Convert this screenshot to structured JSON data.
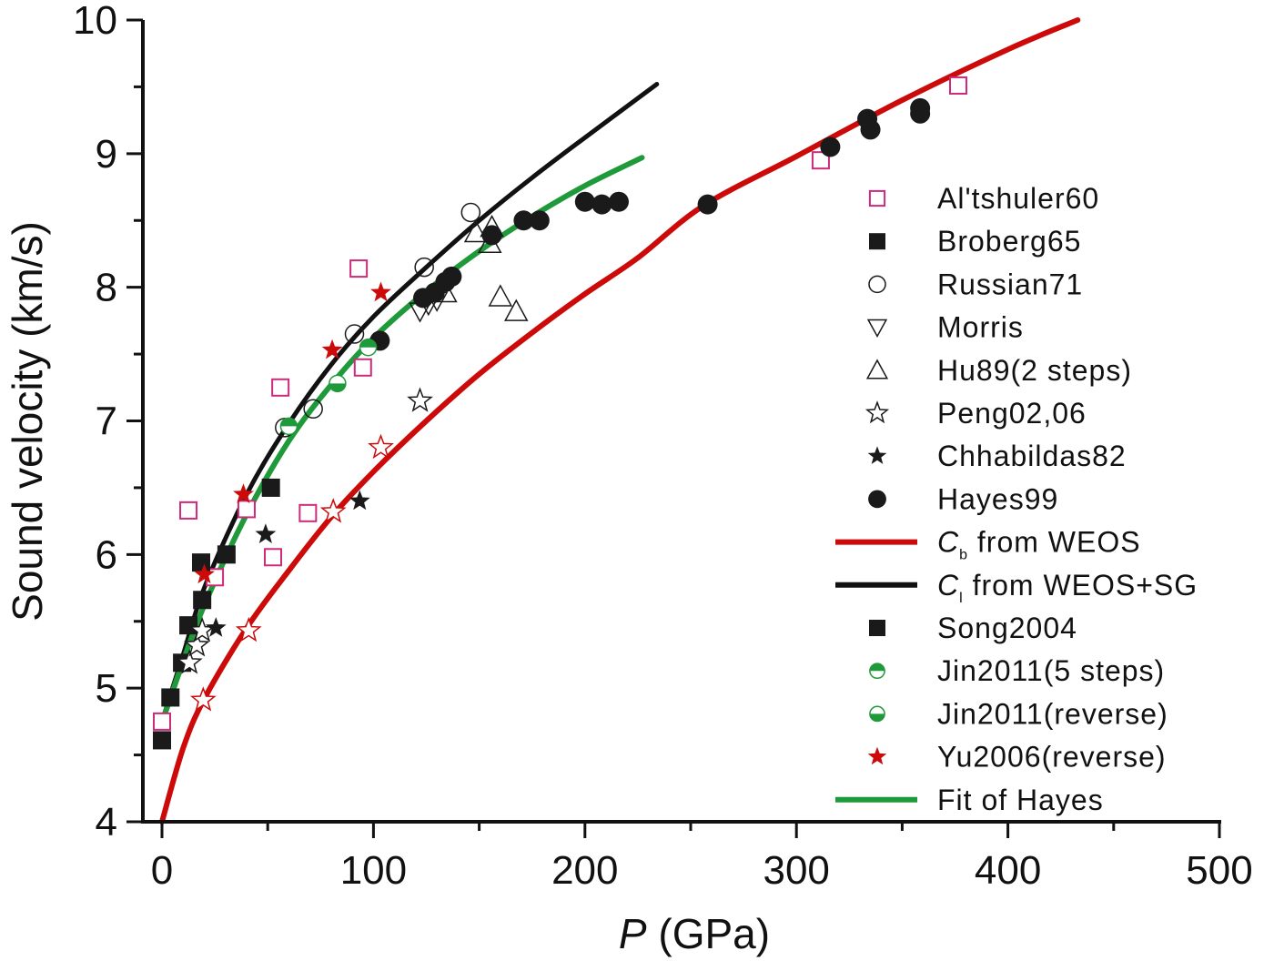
{
  "chart_data": {
    "type": "scatter",
    "title": "",
    "xlabel": "P (GPa)",
    "xlabel_italic": "P",
    "xlabel_rest": " (GPa)",
    "ylabel": "Sound velocity (km/s)",
    "xlim": [
      0,
      500
    ],
    "ylim": [
      4,
      10
    ],
    "x_ticks": [
      0,
      100,
      200,
      300,
      400,
      500
    ],
    "x_minor_ticks": [
      50,
      150,
      250,
      350,
      450
    ],
    "y_ticks": [
      4,
      5,
      6,
      7,
      8,
      9,
      10
    ],
    "y_minor_ticks": [
      4.5,
      5.5,
      6.5,
      7.5,
      8.5,
      9.5
    ],
    "grid": false,
    "legend_position": "right",
    "series": [
      {
        "name": "Al'tshuler60",
        "kind": "marker",
        "marker": "square-open",
        "color": "#cc2a7a",
        "points": [
          [
            0,
            4.75
          ],
          [
            12.5,
            6.33
          ],
          [
            25,
            5.83
          ],
          [
            40,
            6.34
          ],
          [
            52.5,
            5.98
          ],
          [
            56,
            7.25
          ],
          [
            69,
            6.31
          ],
          [
            93,
            8.14
          ],
          [
            95,
            7.4
          ],
          [
            311.5,
            8.95
          ],
          [
            376.5,
            9.51
          ]
        ]
      },
      {
        "name": "Broberg65",
        "kind": "marker",
        "marker": "square-filled",
        "color": "#1a1a1a",
        "points": [
          [
            0,
            4.61
          ],
          [
            4,
            4.93
          ],
          [
            9.5,
            5.19
          ],
          [
            12.5,
            5.47
          ],
          [
            19,
            5.66
          ],
          [
            18.5,
            5.94
          ],
          [
            30.5,
            6.0
          ],
          [
            51.5,
            6.5
          ]
        ]
      },
      {
        "name": "Russian71",
        "kind": "marker",
        "marker": "circle-open",
        "color": "#1a1a1a",
        "points": [
          [
            58,
            6.95
          ],
          [
            71.5,
            7.09
          ],
          [
            91,
            7.65
          ],
          [
            124,
            8.15
          ],
          [
            146,
            8.56
          ]
        ]
      },
      {
        "name": "Morris",
        "kind": "marker",
        "marker": "triangle-down-open",
        "color": "#1a1a1a",
        "points": [
          [
            122,
            7.82
          ],
          [
            126,
            7.87
          ],
          [
            130,
            7.9
          ]
        ]
      },
      {
        "name": "Hu89(2 steps)",
        "kind": "marker",
        "marker": "triangle-up-open",
        "color": "#1a1a1a",
        "points": [
          [
            134,
            7.96
          ],
          [
            148.5,
            8.41
          ],
          [
            155,
            8.33
          ],
          [
            156,
            8.45
          ],
          [
            160,
            7.93
          ],
          [
            167.5,
            7.82
          ]
        ]
      },
      {
        "name": "Peng02,06",
        "kind": "marker",
        "marker": "star-open",
        "color": "#1a1a1a",
        "points": [
          [
            13,
            5.19
          ],
          [
            16.5,
            5.32
          ],
          [
            19,
            5.43
          ],
          [
            122,
            7.15
          ]
        ]
      },
      {
        "name": "Chhabildas82",
        "kind": "marker",
        "marker": "star-filled",
        "color": "#1a1a1a",
        "points": [
          [
            25.5,
            5.45
          ],
          [
            49,
            6.15
          ],
          [
            93.5,
            6.4
          ]
        ]
      },
      {
        "name": "Hayes99",
        "kind": "marker",
        "marker": "circle-filled",
        "color": "#1a1a1a",
        "points": [
          [
            103,
            7.6
          ],
          [
            123.5,
            7.92
          ],
          [
            129,
            7.96
          ],
          [
            134,
            8.04
          ],
          [
            137,
            8.08
          ],
          [
            156,
            8.39
          ],
          [
            171,
            8.5
          ],
          [
            178.5,
            8.5
          ],
          [
            200,
            8.64
          ],
          [
            208,
            8.62
          ],
          [
            216,
            8.64
          ],
          [
            258,
            8.62
          ],
          [
            316,
            9.05
          ],
          [
            333.5,
            9.26
          ],
          [
            335,
            9.18
          ],
          [
            358.5,
            9.34
          ],
          [
            358.5,
            9.3
          ]
        ]
      },
      {
        "name": "Cb from WEOS",
        "kind": "line",
        "label_main": "C",
        "label_sub": "b",
        "label_rest": " from WEOS",
        "color": "#cc0a0a",
        "points": [
          [
            0,
            4.0
          ],
          [
            10,
            4.55
          ],
          [
            20,
            4.92
          ],
          [
            40,
            5.45
          ],
          [
            60,
            5.88
          ],
          [
            80,
            6.28
          ],
          [
            100,
            6.62
          ],
          [
            125,
            7.0
          ],
          [
            150,
            7.35
          ],
          [
            175,
            7.66
          ],
          [
            200,
            7.95
          ],
          [
            225,
            8.22
          ],
          [
            256,
            8.61
          ],
          [
            300,
            8.98
          ],
          [
            350,
            9.4
          ],
          [
            400,
            9.78
          ],
          [
            433,
            10.0
          ]
        ]
      },
      {
        "name": "Cl from WEOS+SG",
        "kind": "line",
        "label_main": "C",
        "label_sub": "l",
        "label_rest": " from WEOS+SG",
        "color": "#111111",
        "points": [
          [
            0,
            4.75
          ],
          [
            10,
            5.25
          ],
          [
            20,
            5.75
          ],
          [
            40,
            6.45
          ],
          [
            60,
            6.98
          ],
          [
            80,
            7.42
          ],
          [
            100,
            7.78
          ],
          [
            125,
            8.15
          ],
          [
            150,
            8.5
          ],
          [
            175,
            8.82
          ],
          [
            200,
            9.12
          ],
          [
            234,
            9.52
          ]
        ]
      },
      {
        "name": "Song2004",
        "kind": "marker",
        "marker": "square-filled",
        "color": "#1a1a1a",
        "points": []
      },
      {
        "name": "Jin2011(5 steps)",
        "kind": "marker",
        "marker": "circle-half-top",
        "color": "#1f9a3a",
        "points": [
          [
            60,
            6.96
          ],
          [
            97.5,
            7.55
          ]
        ]
      },
      {
        "name": "Jin2011(reverse)",
        "kind": "marker",
        "marker": "circle-half-bottom",
        "color": "#1f9a3a",
        "points": [
          [
            83,
            7.28
          ]
        ]
      },
      {
        "name": "Yu2006(reverse)",
        "kind": "marker",
        "marker": "star-filled",
        "color": "#cc0a0a",
        "points": [
          [
            20,
            5.85
          ],
          [
            38.5,
            6.45
          ],
          [
            80.5,
            7.53
          ],
          [
            103.5,
            7.96
          ]
        ]
      },
      {
        "name": "Fit of Hayes",
        "kind": "line",
        "color": "#1f9a3a",
        "points": [
          [
            1,
            4.79
          ],
          [
            10,
            5.2
          ],
          [
            20,
            5.62
          ],
          [
            40,
            6.3
          ],
          [
            60,
            6.85
          ],
          [
            80,
            7.27
          ],
          [
            100,
            7.62
          ],
          [
            125,
            7.97
          ],
          [
            150,
            8.27
          ],
          [
            175,
            8.53
          ],
          [
            200,
            8.76
          ],
          [
            227,
            8.97
          ]
        ]
      }
    ],
    "unlabeled_markers": [
      {
        "marker": "star-open",
        "color": "#cc0a0a",
        "points": [
          [
            19.5,
            4.91
          ],
          [
            41,
            5.43
          ],
          [
            81,
            6.32
          ],
          [
            103.5,
            6.8
          ]
        ]
      }
    ]
  }
}
